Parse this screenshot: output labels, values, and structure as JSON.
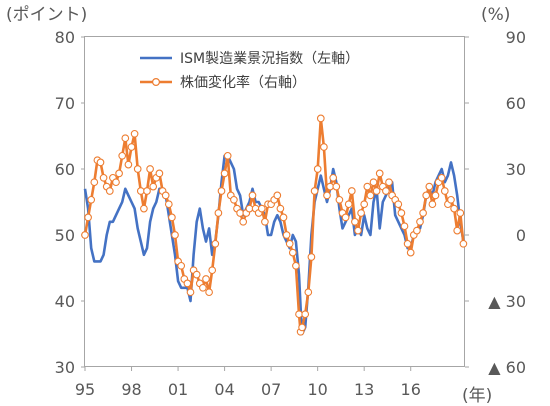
{
  "chart_data": {
    "type": "line",
    "left_axis": {
      "unit_label": "(ポイント)",
      "ylim": [
        30,
        80
      ],
      "ticks": [
        {
          "value": 80,
          "label": "80"
        },
        {
          "value": 70,
          "label": "70"
        },
        {
          "value": 60,
          "label": "60"
        },
        {
          "value": 50,
          "label": "50"
        },
        {
          "value": 40,
          "label": "40"
        },
        {
          "value": 30,
          "label": "30"
        }
      ]
    },
    "right_axis": {
      "unit_label": "(%)",
      "ylim": [
        -60,
        90
      ],
      "ticks": [
        {
          "value": 90,
          "label": "90"
        },
        {
          "value": 60,
          "label": "60"
        },
        {
          "value": 30,
          "label": "30"
        },
        {
          "value": 0,
          "label": "0"
        },
        {
          "value": -30,
          "label": "▲ 30"
        },
        {
          "value": -60,
          "label": "▲ 60"
        }
      ]
    },
    "x_axis": {
      "unit_label": "(年)",
      "xlim": [
        1995,
        2019.5
      ],
      "ticks": [
        {
          "value": 1995,
          "label": "95"
        },
        {
          "value": 1998,
          "label": "98"
        },
        {
          "value": 2001,
          "label": "01"
        },
        {
          "value": 2004,
          "label": "04"
        },
        {
          "value": 2007,
          "label": "07"
        },
        {
          "value": 2010,
          "label": "10"
        },
        {
          "value": 2013,
          "label": "13"
        },
        {
          "value": 2016,
          "label": "16"
        }
      ]
    },
    "legend_position": "top",
    "series": [
      {
        "name": "ISM製造業景況指数（左軸）",
        "axis": "left",
        "color": "#4472C4",
        "marker": "none",
        "points": [
          [
            1995.0,
            57
          ],
          [
            1995.2,
            54
          ],
          [
            1995.4,
            48
          ],
          [
            1995.6,
            46
          ],
          [
            1995.8,
            46
          ],
          [
            1996.0,
            46
          ],
          [
            1996.2,
            47
          ],
          [
            1996.4,
            50
          ],
          [
            1996.6,
            52
          ],
          [
            1996.8,
            52
          ],
          [
            1997.0,
            53
          ],
          [
            1997.2,
            54
          ],
          [
            1997.4,
            55
          ],
          [
            1997.6,
            57
          ],
          [
            1997.8,
            56
          ],
          [
            1998.0,
            55
          ],
          [
            1998.2,
            54
          ],
          [
            1998.4,
            51
          ],
          [
            1998.6,
            49
          ],
          [
            1998.8,
            47
          ],
          [
            1999.0,
            48
          ],
          [
            1999.2,
            52
          ],
          [
            1999.4,
            54
          ],
          [
            1999.6,
            55
          ],
          [
            1999.8,
            57
          ],
          [
            2000.0,
            57
          ],
          [
            2000.2,
            56
          ],
          [
            2000.4,
            53
          ],
          [
            2000.6,
            50
          ],
          [
            2000.8,
            47
          ],
          [
            2001.0,
            43
          ],
          [
            2001.2,
            42
          ],
          [
            2001.4,
            42
          ],
          [
            2001.6,
            42
          ],
          [
            2001.8,
            40
          ],
          [
            2002.0,
            47
          ],
          [
            2002.2,
            52
          ],
          [
            2002.4,
            54
          ],
          [
            2002.6,
            51
          ],
          [
            2002.8,
            49
          ],
          [
            2003.0,
            51
          ],
          [
            2003.2,
            47
          ],
          [
            2003.4,
            49
          ],
          [
            2003.6,
            53
          ],
          [
            2003.8,
            58
          ],
          [
            2004.0,
            62
          ],
          [
            2004.2,
            62
          ],
          [
            2004.4,
            61
          ],
          [
            2004.6,
            60
          ],
          [
            2004.8,
            57
          ],
          [
            2005.0,
            56
          ],
          [
            2005.2,
            53
          ],
          [
            2005.4,
            54
          ],
          [
            2005.6,
            55
          ],
          [
            2005.8,
            57
          ],
          [
            2006.0,
            55
          ],
          [
            2006.2,
            55
          ],
          [
            2006.4,
            54
          ],
          [
            2006.6,
            53
          ],
          [
            2006.8,
            50
          ],
          [
            2007.0,
            50
          ],
          [
            2007.2,
            52
          ],
          [
            2007.4,
            53
          ],
          [
            2007.6,
            52
          ],
          [
            2007.8,
            50
          ],
          [
            2008.0,
            49
          ],
          [
            2008.2,
            48
          ],
          [
            2008.4,
            50
          ],
          [
            2008.6,
            49
          ],
          [
            2008.8,
            44
          ],
          [
            2008.9,
            39
          ],
          [
            2009.0,
            35
          ],
          [
            2009.2,
            36
          ],
          [
            2009.4,
            42
          ],
          [
            2009.6,
            50
          ],
          [
            2009.8,
            55
          ],
          [
            2010.0,
            57
          ],
          [
            2010.2,
            59
          ],
          [
            2010.4,
            57
          ],
          [
            2010.6,
            55
          ],
          [
            2010.8,
            57
          ],
          [
            2011.0,
            60
          ],
          [
            2011.2,
            58
          ],
          [
            2011.4,
            54
          ],
          [
            2011.6,
            51
          ],
          [
            2011.8,
            52
          ],
          [
            2012.0,
            53
          ],
          [
            2012.2,
            54
          ],
          [
            2012.4,
            50
          ],
          [
            2012.6,
            51
          ],
          [
            2012.8,
            50
          ],
          [
            2013.0,
            53
          ],
          [
            2013.2,
            51
          ],
          [
            2013.4,
            50
          ],
          [
            2013.6,
            55
          ],
          [
            2013.8,
            57
          ],
          [
            2014.0,
            51
          ],
          [
            2014.2,
            55
          ],
          [
            2014.4,
            56
          ],
          [
            2014.6,
            57
          ],
          [
            2014.8,
            58
          ],
          [
            2015.0,
            53
          ],
          [
            2015.2,
            52
          ],
          [
            2015.4,
            51
          ],
          [
            2015.6,
            50
          ],
          [
            2015.8,
            48
          ],
          [
            2016.0,
            48
          ],
          [
            2016.2,
            50
          ],
          [
            2016.4,
            51
          ],
          [
            2016.6,
            51
          ],
          [
            2016.8,
            53
          ],
          [
            2017.0,
            56
          ],
          [
            2017.2,
            57
          ],
          [
            2017.4,
            56
          ],
          [
            2017.6,
            58
          ],
          [
            2017.8,
            59
          ],
          [
            2018.0,
            60
          ],
          [
            2018.2,
            58
          ],
          [
            2018.4,
            59
          ],
          [
            2018.6,
            61
          ],
          [
            2018.8,
            59
          ],
          [
            2019.0,
            56
          ],
          [
            2019.2,
            52
          ],
          [
            2019.4,
            49
          ]
        ]
      },
      {
        "name": "株価変化率（右軸）",
        "axis": "right",
        "color": "#ED7D31",
        "marker": "circle",
        "points": [
          [
            1995.0,
            0
          ],
          [
            1995.2,
            8
          ],
          [
            1995.4,
            16
          ],
          [
            1995.6,
            24
          ],
          [
            1995.8,
            34
          ],
          [
            1996.0,
            33
          ],
          [
            1996.2,
            26
          ],
          [
            1996.4,
            22
          ],
          [
            1996.6,
            20
          ],
          [
            1996.8,
            26
          ],
          [
            1997.0,
            24
          ],
          [
            1997.2,
            28
          ],
          [
            1997.4,
            36
          ],
          [
            1997.6,
            44
          ],
          [
            1997.8,
            32
          ],
          [
            1998.0,
            40
          ],
          [
            1998.2,
            46
          ],
          [
            1998.4,
            30
          ],
          [
            1998.6,
            20
          ],
          [
            1998.8,
            12
          ],
          [
            1999.0,
            20
          ],
          [
            1999.2,
            30
          ],
          [
            1999.4,
            22
          ],
          [
            1999.6,
            26
          ],
          [
            1999.8,
            28
          ],
          [
            2000.0,
            20
          ],
          [
            2000.2,
            18
          ],
          [
            2000.4,
            14
          ],
          [
            2000.6,
            8
          ],
          [
            2000.8,
            0
          ],
          [
            2001.0,
            -12
          ],
          [
            2001.2,
            -14
          ],
          [
            2001.4,
            -20
          ],
          [
            2001.6,
            -22
          ],
          [
            2001.8,
            -26
          ],
          [
            2002.0,
            -16
          ],
          [
            2002.2,
            -18
          ],
          [
            2002.4,
            -22
          ],
          [
            2002.6,
            -24
          ],
          [
            2002.8,
            -20
          ],
          [
            2003.0,
            -26
          ],
          [
            2003.2,
            -16
          ],
          [
            2003.4,
            -4
          ],
          [
            2003.6,
            10
          ],
          [
            2003.8,
            20
          ],
          [
            2004.0,
            28
          ],
          [
            2004.2,
            36
          ],
          [
            2004.4,
            18
          ],
          [
            2004.6,
            16
          ],
          [
            2004.8,
            12
          ],
          [
            2005.0,
            10
          ],
          [
            2005.2,
            6
          ],
          [
            2005.4,
            10
          ],
          [
            2005.6,
            12
          ],
          [
            2005.8,
            18
          ],
          [
            2006.0,
            12
          ],
          [
            2006.2,
            10
          ],
          [
            2006.4,
            12
          ],
          [
            2006.6,
            6
          ],
          [
            2006.8,
            14
          ],
          [
            2007.0,
            14
          ],
          [
            2007.2,
            16
          ],
          [
            2007.4,
            18
          ],
          [
            2007.6,
            12
          ],
          [
            2007.8,
            8
          ],
          [
            2008.0,
            0
          ],
          [
            2008.2,
            -4
          ],
          [
            2008.4,
            -8
          ],
          [
            2008.6,
            -14
          ],
          [
            2008.8,
            -36
          ],
          [
            2008.9,
            -44
          ],
          [
            2009.0,
            -42
          ],
          [
            2009.2,
            -36
          ],
          [
            2009.4,
            -26
          ],
          [
            2009.6,
            -10
          ],
          [
            2009.8,
            20
          ],
          [
            2010.0,
            30
          ],
          [
            2010.2,
            53
          ],
          [
            2010.4,
            40
          ],
          [
            2010.6,
            18
          ],
          [
            2010.8,
            22
          ],
          [
            2011.0,
            26
          ],
          [
            2011.2,
            22
          ],
          [
            2011.4,
            16
          ],
          [
            2011.6,
            10
          ],
          [
            2011.8,
            8
          ],
          [
            2012.0,
            14
          ],
          [
            2012.2,
            20
          ],
          [
            2012.4,
            6
          ],
          [
            2012.6,
            2
          ],
          [
            2012.8,
            10
          ],
          [
            2013.0,
            14
          ],
          [
            2013.2,
            22
          ],
          [
            2013.4,
            18
          ],
          [
            2013.6,
            24
          ],
          [
            2013.8,
            20
          ],
          [
            2014.0,
            28
          ],
          [
            2014.2,
            22
          ],
          [
            2014.4,
            20
          ],
          [
            2014.6,
            24
          ],
          [
            2014.8,
            18
          ],
          [
            2015.0,
            16
          ],
          [
            2015.2,
            14
          ],
          [
            2015.4,
            10
          ],
          [
            2015.6,
            4
          ],
          [
            2015.8,
            -4
          ],
          [
            2016.0,
            -8
          ],
          [
            2016.2,
            0
          ],
          [
            2016.4,
            2
          ],
          [
            2016.6,
            6
          ],
          [
            2016.8,
            10
          ],
          [
            2017.0,
            18
          ],
          [
            2017.2,
            22
          ],
          [
            2017.4,
            14
          ],
          [
            2017.6,
            18
          ],
          [
            2017.8,
            24
          ],
          [
            2018.0,
            26
          ],
          [
            2018.2,
            20
          ],
          [
            2018.4,
            14
          ],
          [
            2018.6,
            16
          ],
          [
            2018.8,
            12
          ],
          [
            2019.0,
            2
          ],
          [
            2019.2,
            10
          ],
          [
            2019.4,
            -4
          ]
        ]
      }
    ]
  }
}
